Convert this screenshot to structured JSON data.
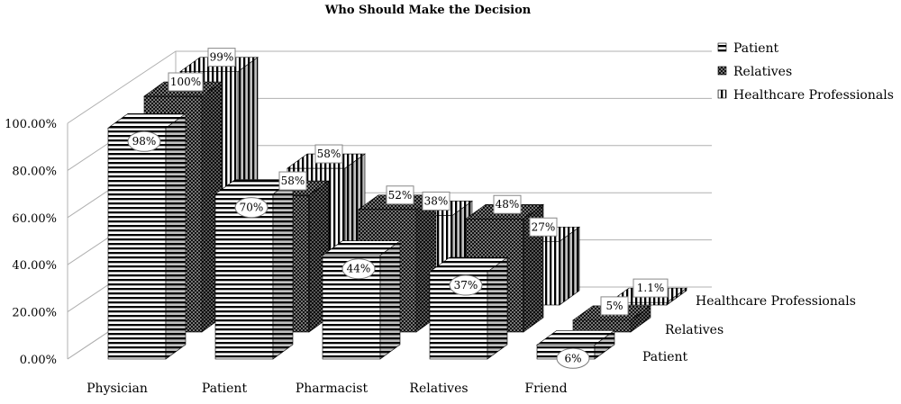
{
  "chart_data": {
    "type": "bar",
    "subtype": "3d-clustered-columns",
    "title": "Who Should Make the Decision",
    "categories": [
      "Physician",
      "Patient",
      "Pharmacist",
      "Relatives",
      "Friend"
    ],
    "series": [
      {
        "name": "Patient",
        "values": [
          98,
          70,
          44,
          37,
          6
        ],
        "labels": [
          "98%",
          "70%",
          "44%",
          "37%",
          "6%"
        ],
        "pattern": "horizontal-stripes"
      },
      {
        "name": "Relatives",
        "values": [
          100,
          58,
          52,
          48,
          5
        ],
        "labels": [
          "100%",
          "58%",
          "52%",
          "48%",
          "5%"
        ],
        "pattern": "dots"
      },
      {
        "name": "Healthcare Professionals",
        "values": [
          99,
          58,
          38,
          27,
          1.1
        ],
        "labels": [
          "99%",
          "58%",
          "38%",
          "27%",
          "1.1%"
        ],
        "pattern": "vertical-stripes"
      }
    ],
    "y_ticks": [
      "0.00%",
      "20.00%",
      "40.00%",
      "60.00%",
      "80.00%",
      "100.00%"
    ],
    "ylim": [
      0,
      100
    ],
    "xlabel": "",
    "ylabel": "",
    "grid": true,
    "legend_position": "top-right"
  }
}
